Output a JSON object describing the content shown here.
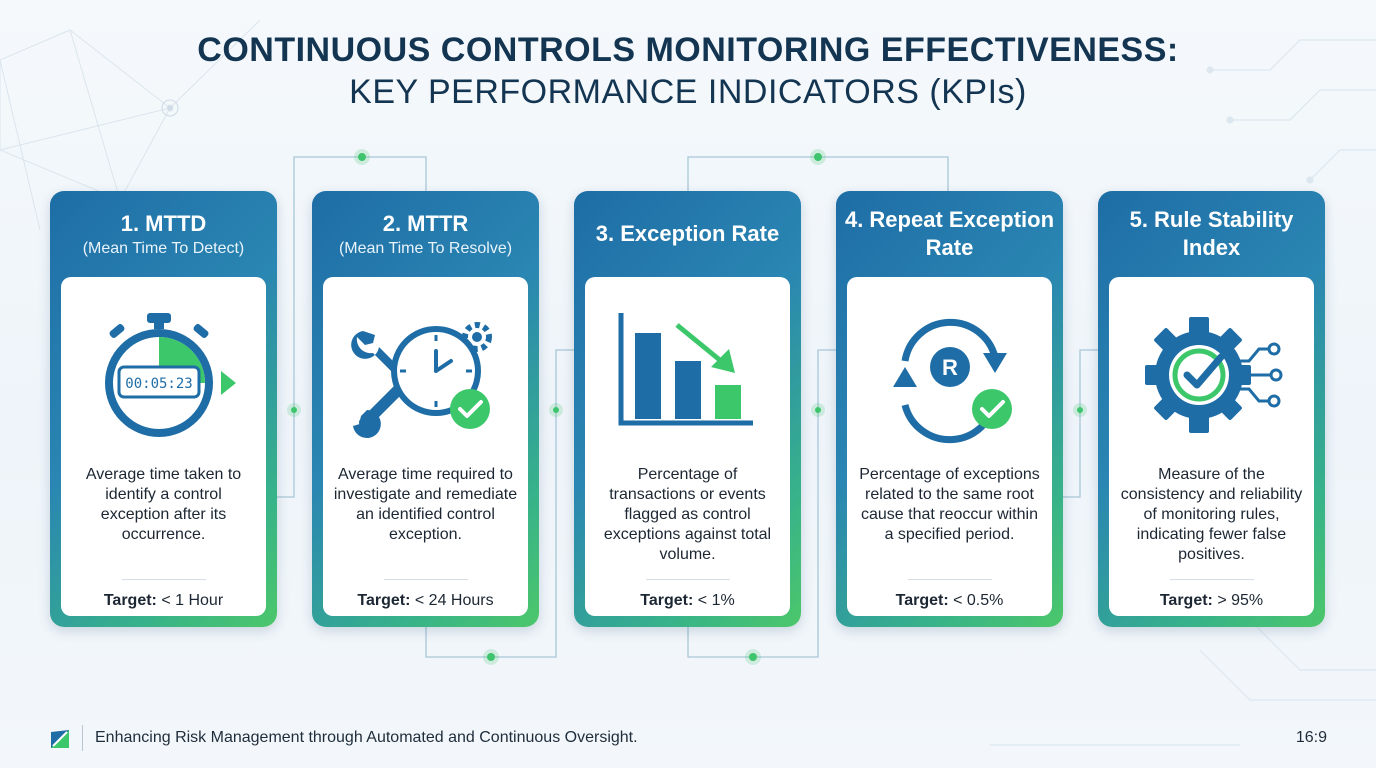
{
  "title": {
    "line1": "CONTINUOUS CONTROLS MONITORING EFFECTIVENESS:",
    "line2": "KEY PERFORMANCE INDICATORS (KPIs)"
  },
  "colors": {
    "primary": "#1e6da6",
    "accent_green": "#3cc86a",
    "title": "#133552"
  },
  "cards": [
    {
      "title": "1. MTTD",
      "subtitle": "(Mean Time To Detect)",
      "icon": "stopwatch-icon",
      "icon_text": "00:05:23",
      "description": "Average time taken to identify a control exception after its occurrence.",
      "target_label": "Target:",
      "target_value": "< 1 Hour"
    },
    {
      "title": "2. MTTR",
      "subtitle": "(Mean Time To Resolve)",
      "icon": "wrench-clock-check-icon",
      "description": "Average time required to investigate and remediate an identified control exception.",
      "target_label": "Target:",
      "target_value": "< 24 Hours"
    },
    {
      "title": "3. Exception Rate",
      "subtitle": "",
      "icon": "declining-bar-chart-icon",
      "description": "Percentage of transactions or events flagged as control exceptions against total volume.",
      "target_label": "Target:",
      "target_value": "< 1%"
    },
    {
      "title": "4. Repeat Exception Rate",
      "subtitle": "",
      "icon": "repeat-cycle-check-icon",
      "icon_text": "R",
      "description": "Percentage of exceptions related to the same root cause that reoccur within a specified period.",
      "target_label": "Target:",
      "target_value": "< 0.5%"
    },
    {
      "title": "5. Rule Stability Index",
      "subtitle": "",
      "icon": "gear-check-circuit-icon",
      "description": "Measure of the consistency and reliability of monitoring rules, indicating fewer false positives.",
      "target_label": "Target:",
      "target_value": "> 95%"
    }
  ],
  "footer": {
    "logo_icon": "brand-logo-icon",
    "text": "Enhancing Risk Management through Automated and Continuous Oversight.",
    "ratio": "16:9"
  }
}
